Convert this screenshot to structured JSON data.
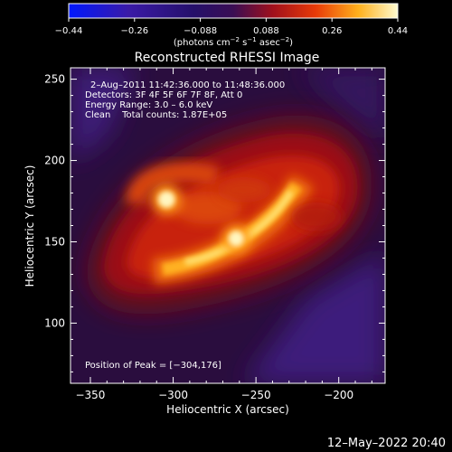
{
  "colorbar": {
    "ticks": [
      "−0.44",
      "−0.26",
      "−0.088",
      "0.088",
      "0.26",
      "0.44"
    ],
    "units": "(photons cm",
    "units_exp1": "−2",
    "units_mid": " s",
    "units_exp2": "−1",
    "units_end": " asec",
    "units_exp3": "−2",
    "units_close": ")"
  },
  "chart_data": {
    "type": "heatmap",
    "title": "Reconstructed RHESSI Image",
    "xlabel": "Heliocentric X (arcsec)",
    "ylabel": "Heliocentric Y (arcsec)",
    "xlim": [
      -362,
      -172
    ],
    "ylim": [
      63,
      257
    ],
    "xticks": [
      -350,
      -300,
      -250,
      -200
    ],
    "yticks": [
      100,
      150,
      200,
      250
    ],
    "colorbar_range": [
      -0.44,
      0.44
    ],
    "annotations": {
      "line1": "2–Aug–2011 11:42:36.000 to 11:48:36.000",
      "line2": "Detectors: 3F 4F 5F 6F 7F 8F, Att 0",
      "line3": "Energy Range: 3.0 – 6.0 keV",
      "line4": "Clean    Total counts: 1.87E+05",
      "peak": "Position of Peak = [−304,176]"
    },
    "sources": [
      {
        "x": -304,
        "y": 176,
        "value": 0.44
      },
      {
        "x": -262,
        "y": 152,
        "value": 0.38
      }
    ],
    "grid": false
  },
  "timestamp": "12–May–2022 20:40"
}
